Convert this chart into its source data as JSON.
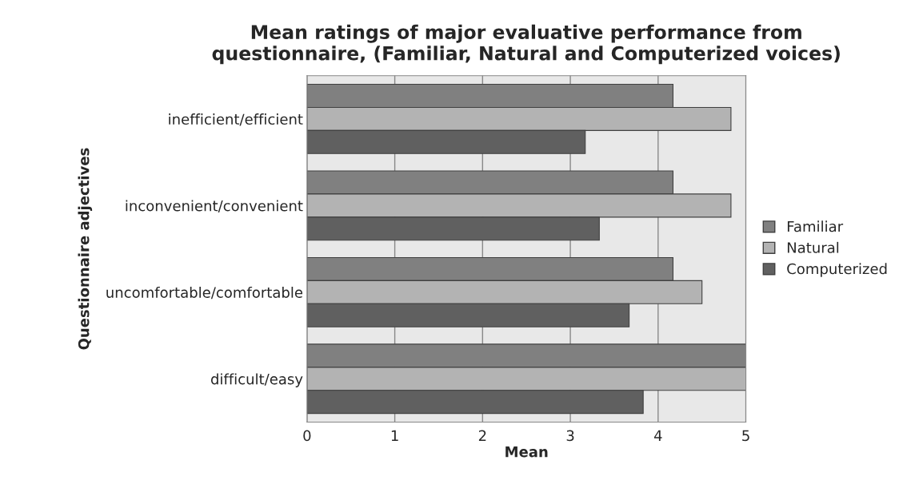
{
  "chart_data": {
    "type": "bar",
    "orientation": "horizontal",
    "title": "Mean ratings of major evaluative performance from\nquestionnaire, (Familiar, Natural and Computerized voices)",
    "xlabel": "Mean",
    "ylabel": "Questionnaire adjectives",
    "categories": [
      "inefficient/efficient",
      "inconvenient/convenient",
      "uncomfortable/comfortable",
      "difficult/easy"
    ],
    "series": [
      {
        "name": "Familiar",
        "color": "#808080",
        "values": [
          4.17,
          4.17,
          4.17,
          5
        ]
      },
      {
        "name": "Natural",
        "color": "#b3b3b3",
        "values": [
          4.83,
          4.83,
          4.5,
          5
        ]
      },
      {
        "name": "Computerized",
        "color": "#606060",
        "values": [
          3.17,
          3.33,
          3.67,
          3.83
        ]
      }
    ],
    "xlim": [
      0,
      5
    ],
    "xticks": [
      0,
      1,
      2,
      3,
      4,
      5
    ],
    "grid": "x",
    "legend": "right"
  }
}
